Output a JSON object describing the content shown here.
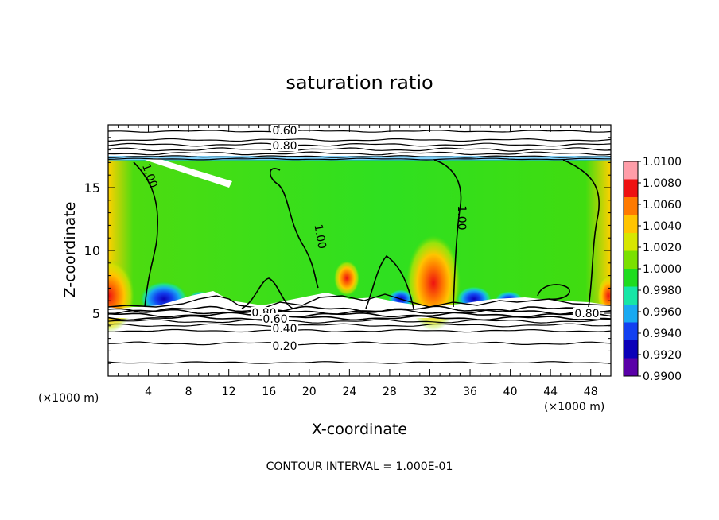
{
  "chart_data": {
    "type": "heatmap",
    "title": "saturation ratio",
    "xlabel": "X-coordinate",
    "ylabel": "Z-coordinate",
    "x_unit": "(×1000 m)",
    "y_unit": "(×1000 m)",
    "xlim": [
      0,
      50
    ],
    "ylim": [
      0,
      20
    ],
    "x_ticks": [
      4,
      8,
      12,
      16,
      20,
      24,
      28,
      32,
      36,
      40,
      44,
      48
    ],
    "y_ticks": [
      5,
      10,
      15
    ],
    "footer": "CONTOUR INTERVAL = 1.000E-01",
    "colorbar": {
      "levels": [
        "1.0100",
        "1.0080",
        "1.0060",
        "1.0040",
        "1.0020",
        "1.0000",
        "0.9980",
        "0.9960",
        "0.9940",
        "0.9920",
        "0.9900"
      ],
      "colors": [
        "#ff9da8",
        "#ee1111",
        "#ff7a00",
        "#ffc400",
        "#d7e600",
        "#7ae000",
        "#1fdc1f",
        "#16e6a6",
        "#18a9f2",
        "#1240f0",
        "#0b00b8",
        "#5a00a8"
      ]
    },
    "contour_labels": [
      {
        "text": "0.60",
        "level": 0.6
      },
      {
        "text": "0.80",
        "level": 0.8
      },
      {
        "text": "1.00",
        "level": 1.0
      },
      {
        "text": "1.00",
        "level": 1.0
      },
      {
        "text": "1.00",
        "level": 1.0
      },
      {
        "text": "0.80",
        "level": 0.8
      },
      {
        "text": "0.60",
        "level": 0.6
      },
      {
        "text": "0.40",
        "level": 0.4
      },
      {
        "text": "0.20",
        "level": 0.2
      },
      {
        "text": "0.80",
        "level": 0.8
      }
    ],
    "cloud_layer_z": [
      5.5,
      17.2
    ]
  }
}
